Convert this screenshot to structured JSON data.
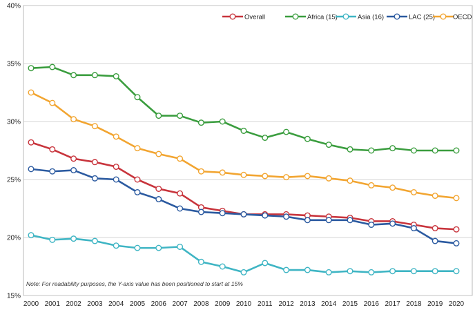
{
  "chart_data": {
    "type": "line",
    "title": "",
    "xlabel": "",
    "ylabel": "",
    "x": [
      "2000",
      "2001",
      "2002",
      "2003",
      "2004",
      "2005",
      "2006",
      "2007",
      "2008",
      "2009",
      "2010",
      "2011",
      "2012",
      "2013",
      "2014",
      "2015",
      "2016",
      "2017",
      "2018",
      "2019",
      "2020"
    ],
    "ylim": [
      15,
      40
    ],
    "y_ticks": [
      15,
      20,
      25,
      30,
      35,
      40
    ],
    "y_tick_labels": [
      "15%",
      "20%",
      "25%",
      "30%",
      "35%",
      "40%"
    ],
    "grid": true,
    "legend_position": "top-right",
    "note": "Note: For readability purposes, the Y-axis value has been positioned to start at 15%",
    "series": [
      {
        "name": "Overall",
        "color": "#c8343c",
        "values": [
          28.2,
          27.6,
          26.8,
          26.5,
          26.1,
          25.0,
          24.2,
          23.8,
          22.6,
          22.3,
          22.0,
          22.0,
          22.0,
          21.9,
          21.8,
          21.7,
          21.4,
          21.4,
          21.1,
          20.8,
          20.7
        ]
      },
      {
        "name": "Africa (15)",
        "color": "#3a9d3e",
        "values": [
          34.6,
          34.7,
          34.0,
          34.0,
          33.9,
          32.1,
          30.5,
          30.5,
          29.9,
          30.0,
          29.2,
          28.6,
          29.1,
          28.5,
          28.0,
          27.6,
          27.5,
          27.7,
          27.5,
          27.5,
          27.5
        ]
      },
      {
        "name": "Asia (16)",
        "color": "#3fb5c4",
        "values": [
          20.2,
          19.8,
          19.9,
          19.7,
          19.3,
          19.1,
          19.1,
          19.2,
          17.9,
          17.5,
          17.0,
          17.8,
          17.2,
          17.2,
          17.0,
          17.1,
          17.0,
          17.1,
          17.1,
          17.1,
          17.1
        ]
      },
      {
        "name": "LAC (25)",
        "color": "#2b5aa0",
        "values": [
          25.9,
          25.7,
          25.8,
          25.1,
          25.0,
          23.9,
          23.3,
          22.5,
          22.2,
          22.1,
          22.0,
          21.9,
          21.8,
          21.5,
          21.5,
          21.5,
          21.1,
          21.2,
          20.8,
          19.7,
          19.5
        ]
      },
      {
        "name": "OECD",
        "color": "#f2a531",
        "values": [
          32.5,
          31.6,
          30.2,
          29.6,
          28.7,
          27.7,
          27.2,
          26.8,
          25.7,
          25.6,
          25.4,
          25.3,
          25.2,
          25.3,
          25.1,
          24.9,
          24.5,
          24.3,
          23.9,
          23.6,
          23.4
        ]
      }
    ]
  }
}
